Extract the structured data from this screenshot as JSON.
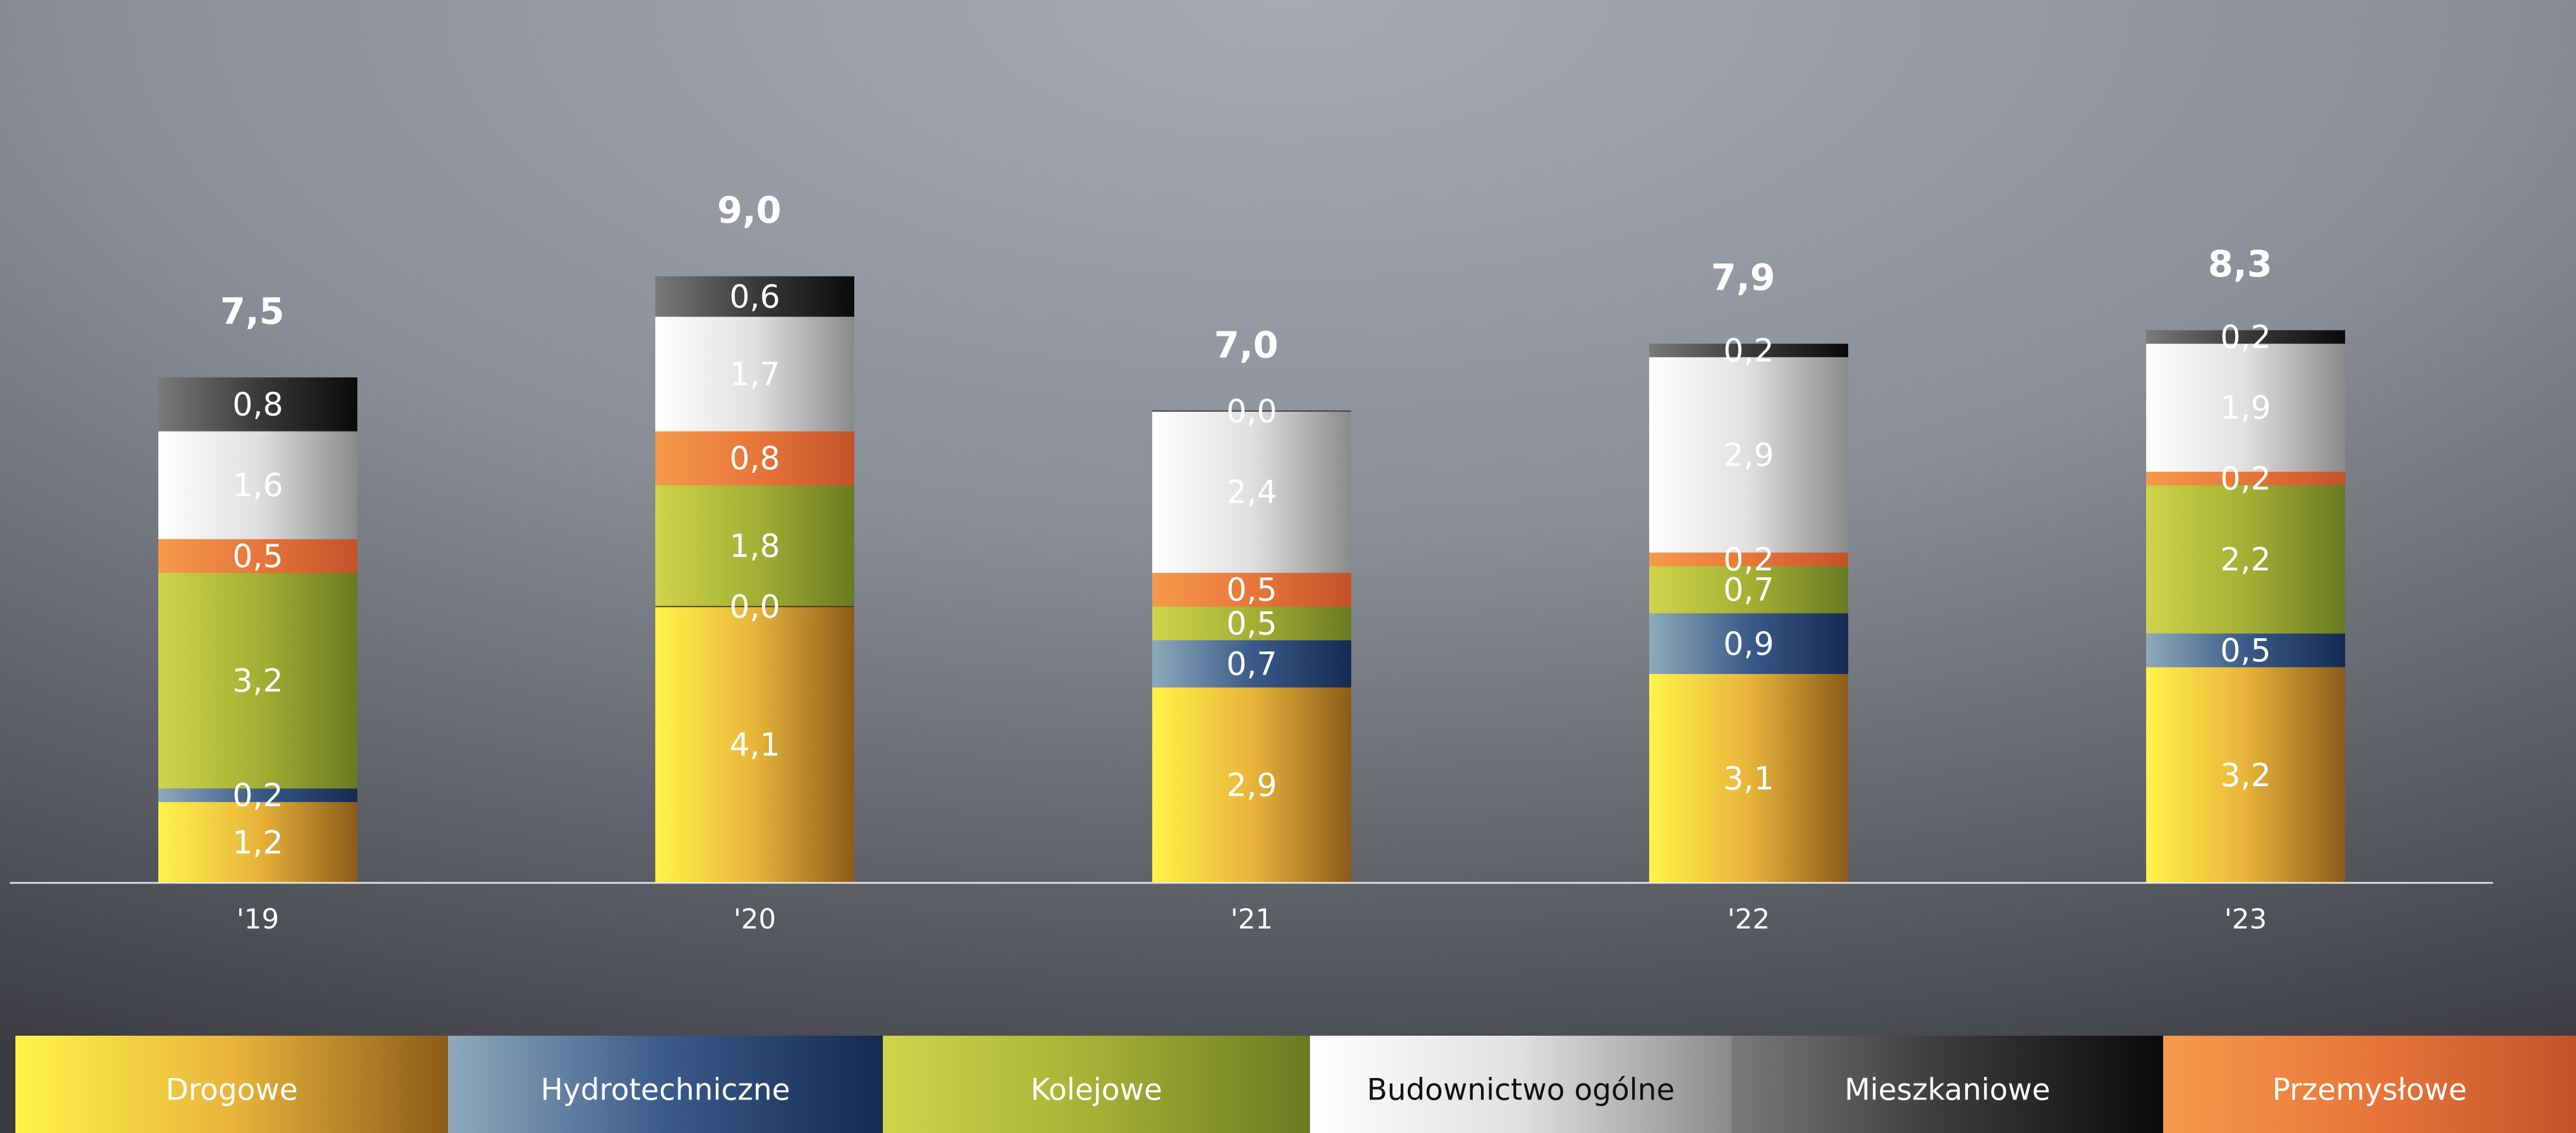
{
  "chart_data": {
    "type": "bar",
    "stacked": true,
    "categories": [
      "'19",
      "'20",
      "'21",
      "'22",
      "'23"
    ],
    "totals": [
      "7,5",
      "9,0",
      "7,0",
      "7,9",
      "8,3"
    ],
    "series": [
      {
        "name": "Drogowe",
        "values": [
          1.2,
          4.1,
          2.9,
          3.1,
          3.2
        ],
        "labels": [
          "1,2",
          "4,1",
          "2,9",
          "3,1",
          "3,2"
        ]
      },
      {
        "name": "Hydrotechniczne",
        "values": [
          0.2,
          0.0,
          0.7,
          0.9,
          0.5
        ],
        "labels": [
          "0,2",
          "",
          "0,7",
          "0,9",
          "0,5"
        ]
      },
      {
        "name": "Kolejowe",
        "values": [
          3.2,
          1.8,
          0.5,
          0.7,
          2.2
        ],
        "labels": [
          "3,2",
          "1,8",
          "0,5",
          "0,7",
          "2,2"
        ]
      },
      {
        "name": "Przemysłowe",
        "values": [
          0.5,
          0.8,
          0.5,
          0.2,
          0.2
        ],
        "labels": [
          "0,5",
          "0,8",
          "0,5",
          "0,2",
          "0,2"
        ]
      },
      {
        "name": "Budownictwo ogólne",
        "values": [
          1.6,
          1.7,
          2.4,
          2.9,
          1.9
        ],
        "labels": [
          "1,6",
          "1,7",
          "2,4",
          "2,9",
          "1,9"
        ]
      },
      {
        "name": "Mieszkaniowe",
        "values": [
          0.8,
          0.6,
          0.0,
          0.2,
          0.2
        ],
        "labels": [
          "0,8",
          "0,6",
          "",
          "0,2",
          "0,2"
        ]
      }
    ],
    "extra_labels": [
      {
        "category": 1,
        "after_series": 1,
        "text": "0,0"
      },
      {
        "category": 2,
        "after_series": 5,
        "text": "0,0"
      }
    ],
    "legend": [
      "Drogowe",
      "Hydrotechniczne",
      "Kolejowe",
      "Budownictwo ogólne",
      "Mieszkaniowe",
      "Przemysłowe"
    ],
    "legend_position": "bottom",
    "colors": {
      "Drogowe": [
        "#fff44a",
        "#e8b43a",
        "#8a5c1a"
      ],
      "Hydrotechniczne": [
        "#8eaabb",
        "#3a5a8a",
        "#142a52"
      ],
      "Kolejowe": [
        "#cfd44a",
        "#a4b034",
        "#6a7a22"
      ],
      "Przemysłowe": [
        "#f59a4a",
        "#e8763a",
        "#c4522a"
      ],
      "Budownictwo ogólne": [
        "#ffffff",
        "#e0e0e0",
        "#8a8a8a"
      ],
      "Mieszkaniowe": [
        "#7a7a7a",
        "#3a3a3a",
        "#0a0a0a"
      ]
    },
    "legend_text_colors": {
      "Drogowe": "#ffffff",
      "Hydrotechniczne": "#ffffff",
      "Kolejowe": "#ffffff",
      "Budownictwo ogólne": "#111111",
      "Mieszkaniowe": "#ffffff",
      "Przemysłowe": "#ffffff"
    },
    "background": [
      "#a6aab4",
      "#8a8e96",
      "#3a3c42"
    ],
    "title": "",
    "xlabel": "",
    "ylabel": "",
    "grid": false
  }
}
